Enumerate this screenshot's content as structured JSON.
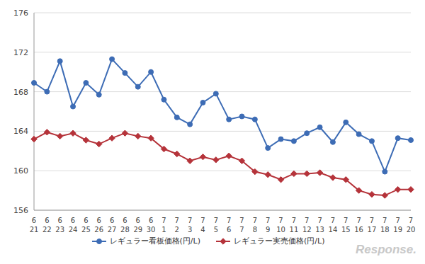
{
  "chart_data": {
    "type": "line",
    "categories": [
      "6\n21",
      "6\n22",
      "6\n23",
      "6\n24",
      "6\n25",
      "6\n26",
      "6\n27",
      "6\n28",
      "6\n29",
      "6\n30",
      "7\n1",
      "7\n2",
      "7\n3",
      "7\n4",
      "7\n5",
      "7\n6",
      "7\n7",
      "7\n8",
      "7\n9",
      "7\n10",
      "7\n11",
      "7\n12",
      "7\n13",
      "7\n14",
      "7\n15",
      "7\n16",
      "7\n17",
      "7\n18",
      "7\n19",
      "7\n20"
    ],
    "series": [
      {
        "name": "レギュラー看板価格(円/L)",
        "color": "#3d6cb5",
        "marker": "circle",
        "values": [
          168.9,
          168.0,
          171.1,
          166.5,
          168.9,
          167.7,
          171.3,
          169.9,
          168.5,
          170.0,
          167.2,
          165.4,
          164.7,
          166.9,
          167.8,
          165.2,
          165.5,
          165.2,
          162.3,
          163.2,
          163.0,
          163.8,
          164.4,
          162.9,
          164.9,
          163.7,
          163.0,
          159.9,
          163.3,
          163.1
        ]
      },
      {
        "name": "レギュラー実売価格(円/L)",
        "color": "#b5333a",
        "marker": "diamond",
        "values": [
          163.2,
          163.9,
          163.5,
          163.8,
          163.1,
          162.7,
          163.3,
          163.8,
          163.5,
          163.3,
          162.2,
          161.7,
          161.0,
          161.4,
          161.1,
          161.5,
          161.0,
          159.9,
          159.6,
          159.1,
          159.7,
          159.7,
          159.8,
          159.3,
          159.1,
          158.0,
          157.6,
          157.5,
          158.1,
          158.1
        ]
      }
    ],
    "ylim": [
      156,
      176
    ],
    "yticks": [
      156,
      160,
      164,
      168,
      172,
      176
    ],
    "grid": true,
    "legend": "bottom",
    "annotations": [
      "Response."
    ]
  }
}
